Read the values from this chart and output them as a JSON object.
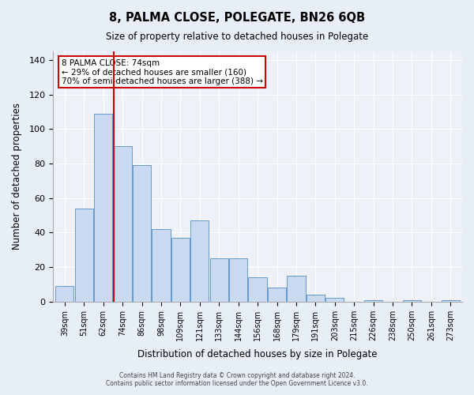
{
  "title": "8, PALMA CLOSE, POLEGATE, BN26 6QB",
  "subtitle": "Size of property relative to detached houses in Polegate",
  "xlabel": "Distribution of detached houses by size in Polegate",
  "ylabel": "Number of detached properties",
  "bar_labels": [
    "39sqm",
    "51sqm",
    "62sqm",
    "74sqm",
    "86sqm",
    "98sqm",
    "109sqm",
    "121sqm",
    "133sqm",
    "144sqm",
    "156sqm",
    "168sqm",
    "179sqm",
    "191sqm",
    "203sqm",
    "215sqm",
    "226sqm",
    "238sqm",
    "250sqm",
    "261sqm",
    "273sqm"
  ],
  "bar_values": [
    9,
    54,
    109,
    90,
    79,
    42,
    37,
    47,
    25,
    25,
    14,
    8,
    15,
    4,
    2,
    0,
    1,
    0,
    1,
    0,
    1
  ],
  "bar_color": "#c8d9f0",
  "bar_edge_color": "#6699cc",
  "vline_x": 2.525,
  "vline_color": "#cc0000",
  "annotation_title": "8 PALMA CLOSE: 74sqm",
  "annotation_line1": "← 29% of detached houses are smaller (160)",
  "annotation_line2": "70% of semi-detached houses are larger (388) →",
  "annotation_box_color": "#ffffff",
  "annotation_box_edge": "#cc0000",
  "ylim": [
    0,
    145
  ],
  "yticks": [
    0,
    20,
    40,
    60,
    80,
    100,
    120,
    140
  ],
  "footer1": "Contains HM Land Registry data © Crown copyright and database right 2024.",
  "footer2": "Contains public sector information licensed under the Open Government Licence v3.0.",
  "bg_color": "#e8eef8",
  "plot_bg_color": "#eef2f8"
}
